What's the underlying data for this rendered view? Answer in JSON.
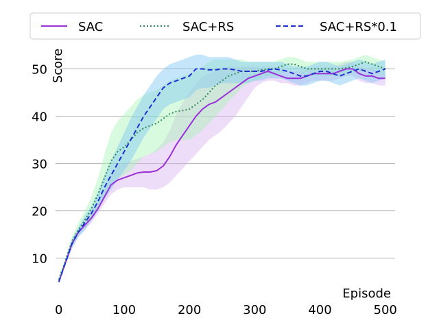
{
  "chart_data": {
    "type": "line",
    "title": "",
    "xlabel": "Episode",
    "ylabel": "Score",
    "xlim": [
      -5,
      515
    ],
    "ylim": [
      3,
      55
    ],
    "xticks": [
      0,
      100,
      200,
      300,
      400,
      500
    ],
    "yticks": [
      10,
      20,
      30,
      40,
      50
    ],
    "grid": "horizontal",
    "legend_position": "top",
    "series": [
      {
        "name": "SAC",
        "color": "#9b30d9",
        "style": "solid",
        "band_color": "#d9b3f0",
        "x": [
          0,
          10,
          20,
          30,
          40,
          50,
          60,
          70,
          80,
          90,
          100,
          110,
          120,
          130,
          140,
          150,
          160,
          170,
          180,
          190,
          200,
          210,
          220,
          230,
          240,
          250,
          260,
          270,
          280,
          290,
          300,
          310,
          320,
          330,
          340,
          350,
          360,
          370,
          380,
          390,
          400,
          410,
          420,
          430,
          440,
          450,
          460,
          470,
          480,
          490,
          500
        ],
        "y": [
          5,
          9,
          13,
          15.5,
          17,
          18.5,
          20.5,
          23,
          25.5,
          26.5,
          27,
          27.5,
          28,
          28.2,
          28.2,
          28.5,
          29.5,
          31.5,
          34,
          36,
          38,
          40,
          41.5,
          42.5,
          43,
          44,
          45,
          46,
          47,
          48,
          48.5,
          49,
          49.5,
          49,
          48.5,
          48,
          48,
          48,
          48.5,
          49,
          49,
          49,
          49,
          49.5,
          50,
          50,
          49,
          48.5,
          48.5,
          48,
          48
        ],
        "lower": [
          5,
          8.5,
          12,
          14.5,
          16,
          17.5,
          19.5,
          21.5,
          23.5,
          24.5,
          25,
          25,
          25,
          25,
          24.5,
          24.5,
          25,
          26,
          27.5,
          29,
          30.5,
          32,
          33.5,
          35,
          36,
          37,
          38.5,
          40,
          42,
          44,
          46,
          47,
          47.5,
          47.5,
          47,
          47,
          46.5,
          46.5,
          47,
          47.5,
          47.5,
          47.5,
          47.5,
          48,
          48.5,
          48.5,
          47.5,
          47,
          47,
          46.5,
          46.5
        ],
        "upper": [
          5.5,
          9.5,
          14,
          16.5,
          18.5,
          20,
          22,
          25,
          28,
          29.5,
          30,
          30.5,
          31,
          31.5,
          32,
          33,
          34.5,
          37,
          40.5,
          43,
          45,
          47,
          48.5,
          49,
          49.5,
          50,
          50.5,
          50.5,
          50.5,
          50.5,
          50.5,
          50.5,
          50.5,
          50.5,
          50,
          49.5,
          49.5,
          49.5,
          50,
          50.5,
          50.5,
          50.5,
          50.5,
          51,
          51.5,
          51.5,
          50.5,
          50,
          50,
          49.5,
          49.5
        ]
      },
      {
        "name": "SAC+RS",
        "color": "#2e8b57",
        "style": "dotted",
        "band_color": "#a8f5b8",
        "x": [
          0,
          10,
          20,
          30,
          40,
          50,
          60,
          70,
          80,
          90,
          100,
          110,
          120,
          130,
          140,
          150,
          160,
          170,
          180,
          190,
          200,
          210,
          220,
          230,
          240,
          250,
          260,
          270,
          280,
          290,
          300,
          310,
          320,
          330,
          340,
          350,
          360,
          370,
          380,
          390,
          400,
          410,
          420,
          430,
          440,
          450,
          460,
          470,
          480,
          490,
          500
        ],
        "y": [
          5.5,
          9.5,
          13.5,
          16,
          18,
          20.5,
          23.5,
          27,
          30.5,
          32.5,
          33.5,
          35,
          36.5,
          37.5,
          38,
          38.5,
          39.5,
          40.5,
          41,
          41.2,
          41.5,
          42.5,
          43.5,
          45,
          46.5,
          47.5,
          48.5,
          49,
          49.5,
          49.5,
          49.5,
          49.8,
          50,
          50,
          50.5,
          51,
          51,
          50.5,
          50,
          50,
          50,
          50,
          50,
          50,
          50.2,
          50.5,
          51,
          51.5,
          51,
          50.5,
          50
        ],
        "lower": [
          5,
          9,
          12.5,
          15,
          16.5,
          18.5,
          20.5,
          23,
          25.5,
          27,
          27.5,
          28.5,
          30,
          31.5,
          32,
          32.5,
          33.5,
          34.5,
          35,
          35,
          35,
          36,
          37,
          38.5,
          40,
          41.5,
          43,
          44.5,
          46,
          47,
          47.5,
          48,
          48.5,
          48.5,
          49,
          49.5,
          49.5,
          49,
          48.5,
          48.5,
          48.5,
          48.5,
          48.5,
          48.5,
          48.7,
          49,
          49.5,
          50,
          49.5,
          49,
          48.5
        ],
        "upper": [
          6,
          10,
          14.5,
          17.5,
          20,
          23,
          27,
          32,
          36.5,
          39,
          40.5,
          42,
          43.5,
          44.5,
          45,
          45.5,
          46.5,
          47.5,
          48,
          48.5,
          49,
          49.5,
          50.5,
          51.5,
          52,
          52,
          52,
          52,
          52,
          51.5,
          51.5,
          51.5,
          51.5,
          51.5,
          52,
          52.5,
          52.5,
          52,
          51.5,
          51.5,
          51.5,
          51.5,
          51.5,
          51.5,
          51.7,
          52,
          52.5,
          53,
          52.5,
          52,
          51.5
        ]
      },
      {
        "name": "SAC+RS*0.1",
        "color": "#1f2fcf",
        "style": "dashed",
        "band_color": "#7ec8f5",
        "x": [
          0,
          10,
          20,
          30,
          40,
          50,
          60,
          70,
          80,
          90,
          100,
          110,
          120,
          130,
          140,
          150,
          160,
          170,
          180,
          190,
          200,
          210,
          220,
          230,
          240,
          250,
          260,
          270,
          280,
          290,
          300,
          310,
          320,
          330,
          340,
          350,
          360,
          370,
          380,
          390,
          400,
          410,
          420,
          430,
          440,
          450,
          460,
          470,
          480,
          490,
          500
        ],
        "y": [
          5,
          9,
          13,
          15.5,
          17.5,
          19.5,
          22,
          25,
          27.5,
          30,
          32.5,
          35,
          37.5,
          40,
          42,
          44,
          46,
          47,
          47.5,
          48,
          48.5,
          50,
          50,
          49.8,
          49.8,
          50,
          50,
          49.8,
          49.5,
          49.5,
          49.5,
          49.5,
          49.8,
          50,
          49.8,
          49.5,
          49,
          48.5,
          48.5,
          49,
          49.5,
          49.5,
          49,
          48.5,
          49,
          49.5,
          50,
          49.5,
          49,
          49.5,
          50
        ],
        "lower": [
          4.5,
          8.5,
          12,
          14.5,
          16,
          18,
          20,
          22.5,
          24.5,
          26.5,
          28.5,
          30.5,
          33,
          35.5,
          37.5,
          39.5,
          41.5,
          42.5,
          43,
          43.5,
          44,
          45.5,
          46,
          46,
          46.5,
          47,
          47,
          47,
          47,
          47,
          47.5,
          47.5,
          48,
          48,
          48,
          47.5,
          47,
          46.5,
          46.5,
          47,
          47.5,
          47.5,
          47,
          46.5,
          47,
          47.5,
          48,
          47.5,
          47,
          47.5,
          48
        ],
        "upper": [
          5.5,
          9.5,
          14,
          16.5,
          19,
          21,
          24,
          27.5,
          30.5,
          33.5,
          36.5,
          39.5,
          42,
          44.5,
          46.5,
          48.5,
          50,
          51,
          51.5,
          52,
          52.5,
          53,
          53,
          52.5,
          52.5,
          52.5,
          52.5,
          52,
          51.5,
          51.5,
          51.5,
          51.5,
          51.5,
          51.5,
          51.5,
          51,
          50.5,
          50.5,
          50.5,
          51,
          51.5,
          51.5,
          51,
          50.5,
          51,
          51.5,
          52,
          51.5,
          51,
          51.5,
          52
        ]
      }
    ]
  }
}
